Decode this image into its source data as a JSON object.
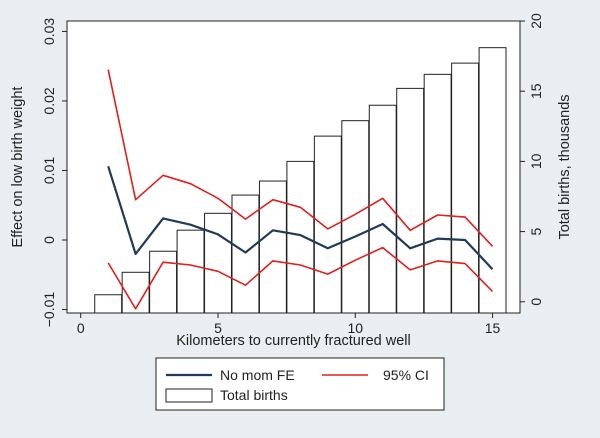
{
  "chart_data": {
    "type": "bar+line",
    "x_label": "Kilometers to currently fractured well",
    "y_label_left": "Effect on low birth weight",
    "y_label_right": "Total births, thousands",
    "x_ticks": [
      0,
      5,
      10,
      15
    ],
    "x_tick_labels": [
      "0",
      "5",
      "10",
      "15"
    ],
    "y_left_ticks": [
      -0.01,
      0,
      0.01,
      0.02,
      0.03
    ],
    "y_left_tick_labels": [
      "−0.01",
      "0",
      "0.01",
      "0.02",
      "0.03"
    ],
    "y_right_ticks": [
      0,
      5,
      10,
      15,
      20
    ],
    "y_right_tick_labels": [
      "0",
      "5",
      "10",
      "15",
      "20"
    ],
    "xlim": [
      -0.5,
      16.0
    ],
    "ylim_left": [
      -0.0105,
      0.0315
    ],
    "ylim_right": [
      -0.8,
      20.0
    ],
    "bars": {
      "name": "Total births",
      "x": [
        1,
        2,
        3,
        4,
        5,
        6,
        7,
        8,
        9,
        10,
        11,
        12,
        13,
        14,
        15
      ],
      "values": [
        0.5,
        2.1,
        3.6,
        5.1,
        6.3,
        7.6,
        8.6,
        10.0,
        11.8,
        12.9,
        14.0,
        15.2,
        16.2,
        17.0,
        18.1
      ]
    },
    "series": [
      {
        "name": "No mom FE",
        "role": "estimate",
        "color": "#1f3a5a",
        "x": [
          1,
          2,
          3,
          4,
          5,
          6,
          7,
          8,
          9,
          10,
          11,
          12,
          13,
          14,
          15
        ],
        "values": [
          0.0106,
          -0.002,
          0.0031,
          0.0022,
          0.0008,
          -0.0018,
          0.0014,
          0.0007,
          -0.0012,
          0.0005,
          0.0023,
          -0.0012,
          0.0002,
          0.0,
          -0.0042
        ]
      },
      {
        "name": "95% CI",
        "role": "upper",
        "color": "#e0201d",
        "x": [
          1,
          2,
          3,
          4,
          5,
          6,
          7,
          8,
          9,
          10,
          11,
          12,
          13,
          14,
          15
        ],
        "values": [
          0.0245,
          0.0058,
          0.0093,
          0.0081,
          0.006,
          0.003,
          0.0058,
          0.0047,
          0.0016,
          0.0037,
          0.006,
          0.0014,
          0.0036,
          0.0033,
          -0.0009
        ]
      },
      {
        "name": "95% CI",
        "role": "lower",
        "color": "#e0201d",
        "x": [
          1,
          2,
          3,
          4,
          5,
          6,
          7,
          8,
          9,
          10,
          11,
          12,
          13,
          14,
          15
        ],
        "values": [
          -0.0033,
          -0.0099,
          -0.0032,
          -0.0036,
          -0.0045,
          -0.0065,
          -0.003,
          -0.0036,
          -0.0049,
          -0.0029,
          -0.0011,
          -0.0043,
          -0.003,
          -0.0034,
          -0.0074
        ]
      }
    ],
    "legend": {
      "position": "bottom",
      "items": [
        {
          "label": "No mom FE",
          "kind": "line",
          "color": "#1f3a5a"
        },
        {
          "label": "95% CI",
          "kind": "line",
          "color": "#e0201d"
        },
        {
          "label": "Total births",
          "kind": "box"
        }
      ]
    }
  }
}
